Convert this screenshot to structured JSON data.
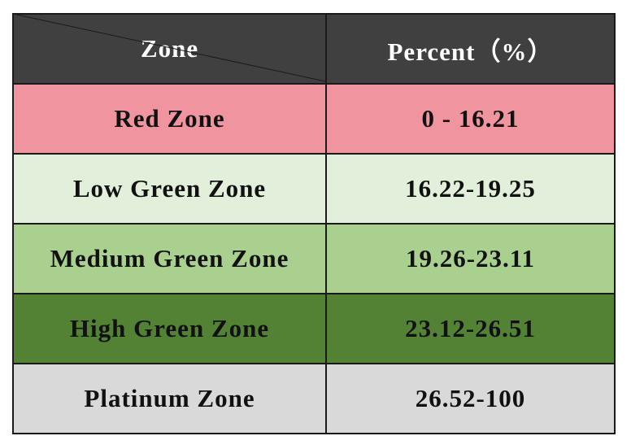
{
  "table": {
    "header": [
      "Zone",
      "Percent（%）"
    ],
    "rows": [
      [
        "Red Zone",
        "0 - 16.21"
      ],
      [
        "Low Green Zone",
        "16.22-19.25"
      ],
      [
        "Medium Green Zone",
        "19.26-23.11"
      ],
      [
        "High Green Zone",
        "23.12-26.51"
      ],
      [
        "Platinum Zone",
        "26.52-100"
      ]
    ]
  }
}
